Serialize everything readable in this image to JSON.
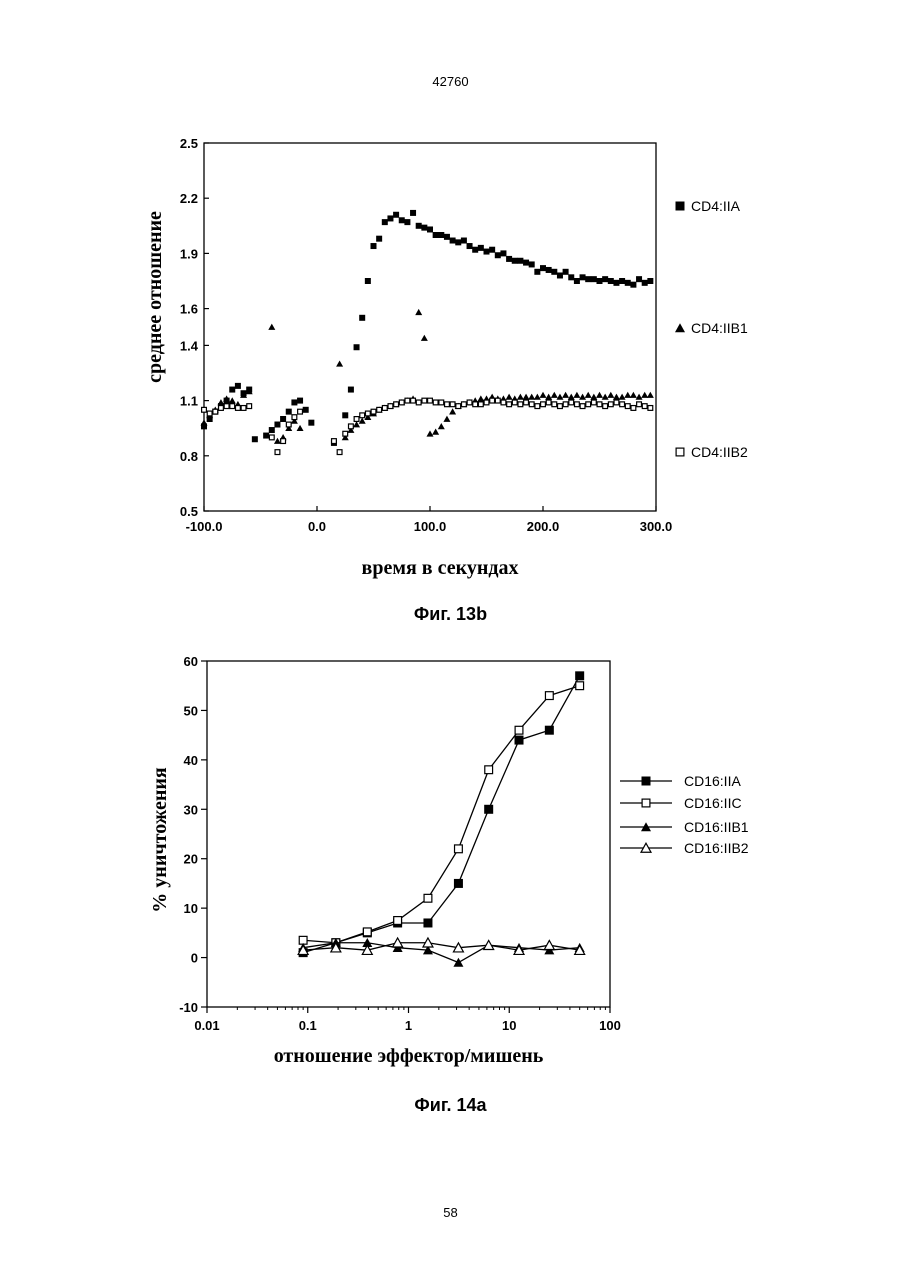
{
  "page": {
    "doc_number": "42760",
    "page_number": "58"
  },
  "chart_data": [
    {
      "type": "scatter",
      "caption": "Фиг. 13b",
      "xlabel": "время в секундах",
      "ylabel": "среднее отношение",
      "xlim": [
        -100,
        300
      ],
      "ylim": [
        0.5,
        2.5
      ],
      "xticks": [
        "-100.0",
        "0.0",
        "100.0",
        "200.0",
        "300.0"
      ],
      "xtick_values": [
        -100,
        0,
        100,
        200,
        300
      ],
      "yticks": [
        "0.5",
        "0.8",
        "1.1",
        "1.4",
        "1.6",
        "1.9",
        "2.2",
        "2.5"
      ],
      "ytick_values": [
        0.5,
        0.8,
        1.1,
        1.4,
        1.6,
        1.9,
        2.2,
        2.5
      ],
      "legend_position": "right",
      "series": [
        {
          "name": "CD4:IIA",
          "marker": "filled-square",
          "x": [
            -100,
            -95,
            -90,
            -85,
            -80,
            -75,
            -70,
            -65,
            -60,
            -55,
            -45,
            -40,
            -35,
            -30,
            -25,
            -20,
            -15,
            -10,
            -5,
            15,
            25,
            30,
            35,
            40,
            45,
            50,
            55,
            60,
            65,
            70,
            75,
            80,
            85,
            90,
            95,
            100,
            105,
            110,
            115,
            120,
            125,
            130,
            135,
            140,
            145,
            150,
            155,
            160,
            165,
            170,
            175,
            180,
            185,
            190,
            195,
            200,
            205,
            210,
            215,
            220,
            225,
            230,
            235,
            240,
            245,
            250,
            255,
            260,
            265,
            270,
            275,
            280,
            285,
            290,
            295
          ],
          "y": [
            0.96,
            1.0,
            1.04,
            1.07,
            1.1,
            1.16,
            1.18,
            1.14,
            1.16,
            0.89,
            0.91,
            0.94,
            0.97,
            1.0,
            1.04,
            1.09,
            1.1,
            1.05,
            0.98,
            0.87,
            1.02,
            1.16,
            1.39,
            1.55,
            1.75,
            1.94,
            1.98,
            2.07,
            2.09,
            2.11,
            2.08,
            2.07,
            2.12,
            2.05,
            2.04,
            2.03,
            2.0,
            2.0,
            1.99,
            1.97,
            1.96,
            1.97,
            1.94,
            1.92,
            1.93,
            1.91,
            1.92,
            1.89,
            1.9,
            1.87,
            1.86,
            1.86,
            1.85,
            1.84,
            1.8,
            1.82,
            1.81,
            1.8,
            1.78,
            1.8,
            1.77,
            1.75,
            1.77,
            1.76,
            1.76,
            1.75,
            1.76,
            1.75,
            1.74,
            1.75,
            1.74,
            1.73,
            1.76,
            1.74,
            1.75
          ]
        },
        {
          "name": "CD4:IIB1",
          "marker": "filled-triangle",
          "x": [
            -100,
            -95,
            -90,
            -85,
            -80,
            -75,
            -70,
            -65,
            -60,
            -40,
            -35,
            -30,
            -25,
            -20,
            -15,
            20,
            25,
            30,
            35,
            40,
            45,
            50,
            55,
            60,
            65,
            70,
            75,
            80,
            85,
            90,
            95,
            100,
            105,
            110,
            115,
            120,
            125,
            130,
            135,
            140,
            145,
            150,
            155,
            160,
            165,
            170,
            175,
            180,
            185,
            190,
            195,
            200,
            205,
            210,
            215,
            220,
            225,
            230,
            235,
            240,
            245,
            250,
            255,
            260,
            265,
            270,
            275,
            280,
            285,
            290,
            295
          ],
          "y": [
            0.98,
            1.02,
            1.05,
            1.09,
            1.11,
            1.1,
            1.08,
            1.13,
            1.15,
            1.5,
            0.88,
            0.9,
            0.95,
            0.99,
            0.95,
            1.3,
            0.9,
            0.94,
            0.97,
            0.99,
            1.01,
            1.03,
            1.05,
            1.06,
            1.07,
            1.08,
            1.09,
            1.1,
            1.11,
            1.58,
            1.44,
            0.92,
            0.93,
            0.96,
            1.0,
            1.04,
            1.07,
            1.08,
            1.09,
            1.1,
            1.11,
            1.11,
            1.12,
            1.11,
            1.11,
            1.12,
            1.11,
            1.12,
            1.12,
            1.12,
            1.12,
            1.13,
            1.12,
            1.13,
            1.12,
            1.13,
            1.12,
            1.13,
            1.12,
            1.13,
            1.12,
            1.13,
            1.12,
            1.13,
            1.12,
            1.12,
            1.13,
            1.13,
            1.12,
            1.13,
            1.13
          ]
        },
        {
          "name": "CD4:IIB2",
          "marker": "open-square",
          "x": [
            -100,
            -95,
            -90,
            -85,
            -80,
            -75,
            -70,
            -65,
            -60,
            -40,
            -35,
            -30,
            -25,
            -20,
            -15,
            15,
            20,
            25,
            30,
            35,
            40,
            45,
            50,
            55,
            60,
            65,
            70,
            75,
            80,
            85,
            90,
            95,
            100,
            105,
            110,
            115,
            120,
            125,
            130,
            135,
            140,
            145,
            150,
            155,
            160,
            165,
            170,
            175,
            180,
            185,
            190,
            195,
            200,
            205,
            210,
            215,
            220,
            225,
            230,
            235,
            240,
            245,
            250,
            255,
            260,
            265,
            270,
            275,
            280,
            285,
            290,
            295
          ],
          "y": [
            1.05,
            1.03,
            1.04,
            1.06,
            1.07,
            1.07,
            1.06,
            1.06,
            1.07,
            0.9,
            0.82,
            0.88,
            0.97,
            1.01,
            1.04,
            0.88,
            0.82,
            0.92,
            0.96,
            1.0,
            1.02,
            1.03,
            1.04,
            1.05,
            1.06,
            1.07,
            1.08,
            1.09,
            1.1,
            1.1,
            1.09,
            1.1,
            1.1,
            1.09,
            1.09,
            1.08,
            1.08,
            1.07,
            1.08,
            1.09,
            1.08,
            1.08,
            1.09,
            1.1,
            1.1,
            1.09,
            1.08,
            1.09,
            1.08,
            1.09,
            1.08,
            1.07,
            1.08,
            1.09,
            1.08,
            1.07,
            1.08,
            1.09,
            1.08,
            1.07,
            1.08,
            1.09,
            1.08,
            1.07,
            1.08,
            1.09,
            1.08,
            1.07,
            1.06,
            1.08,
            1.07,
            1.06
          ]
        }
      ]
    },
    {
      "type": "line",
      "caption": "Фиг. 14a",
      "xlabel": "отношение эффектор/мишень",
      "ylabel": "% уничтожения",
      "xscale": "log",
      "xlim": [
        0.01,
        100
      ],
      "ylim": [
        -10,
        60
      ],
      "xticks": [
        "0.01",
        "0.1",
        "1",
        "10",
        "100"
      ],
      "xtick_values": [
        0.01,
        0.1,
        1,
        10,
        100
      ],
      "yticks": [
        "-10",
        "0",
        "10",
        "20",
        "30",
        "40",
        "50",
        "60"
      ],
      "ytick_values": [
        -10,
        0,
        10,
        20,
        30,
        40,
        50,
        60
      ],
      "legend_position": "right",
      "series": [
        {
          "name": "CD16:IIA",
          "marker": "filled-square",
          "x": [
            0.09,
            0.19,
            0.39,
            0.78,
            1.56,
            3.13,
            6.25,
            12.5,
            25,
            50
          ],
          "y": [
            1,
            3,
            5,
            7,
            7,
            15,
            30,
            44,
            46,
            57
          ]
        },
        {
          "name": "CD16:IIC",
          "marker": "open-square",
          "x": [
            0.09,
            0.19,
            0.39,
            0.78,
            1.56,
            3.13,
            6.25,
            12.5,
            25,
            50
          ],
          "y": [
            3.5,
            3,
            5.2,
            7.5,
            12,
            22,
            38,
            46,
            53,
            55
          ]
        },
        {
          "name": "CD16:IIB1",
          "marker": "filled-triangle",
          "x": [
            0.09,
            0.19,
            0.39,
            0.78,
            1.56,
            3.13,
            6.25,
            12.5,
            25,
            50
          ],
          "y": [
            2,
            3,
            3,
            2,
            1.5,
            -1,
            2.5,
            2,
            1.5,
            2
          ]
        },
        {
          "name": "CD16:IIB2",
          "marker": "open-triangle",
          "x": [
            0.09,
            0.19,
            0.39,
            0.78,
            1.56,
            3.13,
            6.25,
            12.5,
            25,
            50
          ],
          "y": [
            1.5,
            2,
            1.5,
            3,
            3,
            2,
            2.5,
            1.5,
            2.5,
            1.5
          ]
        }
      ]
    }
  ]
}
